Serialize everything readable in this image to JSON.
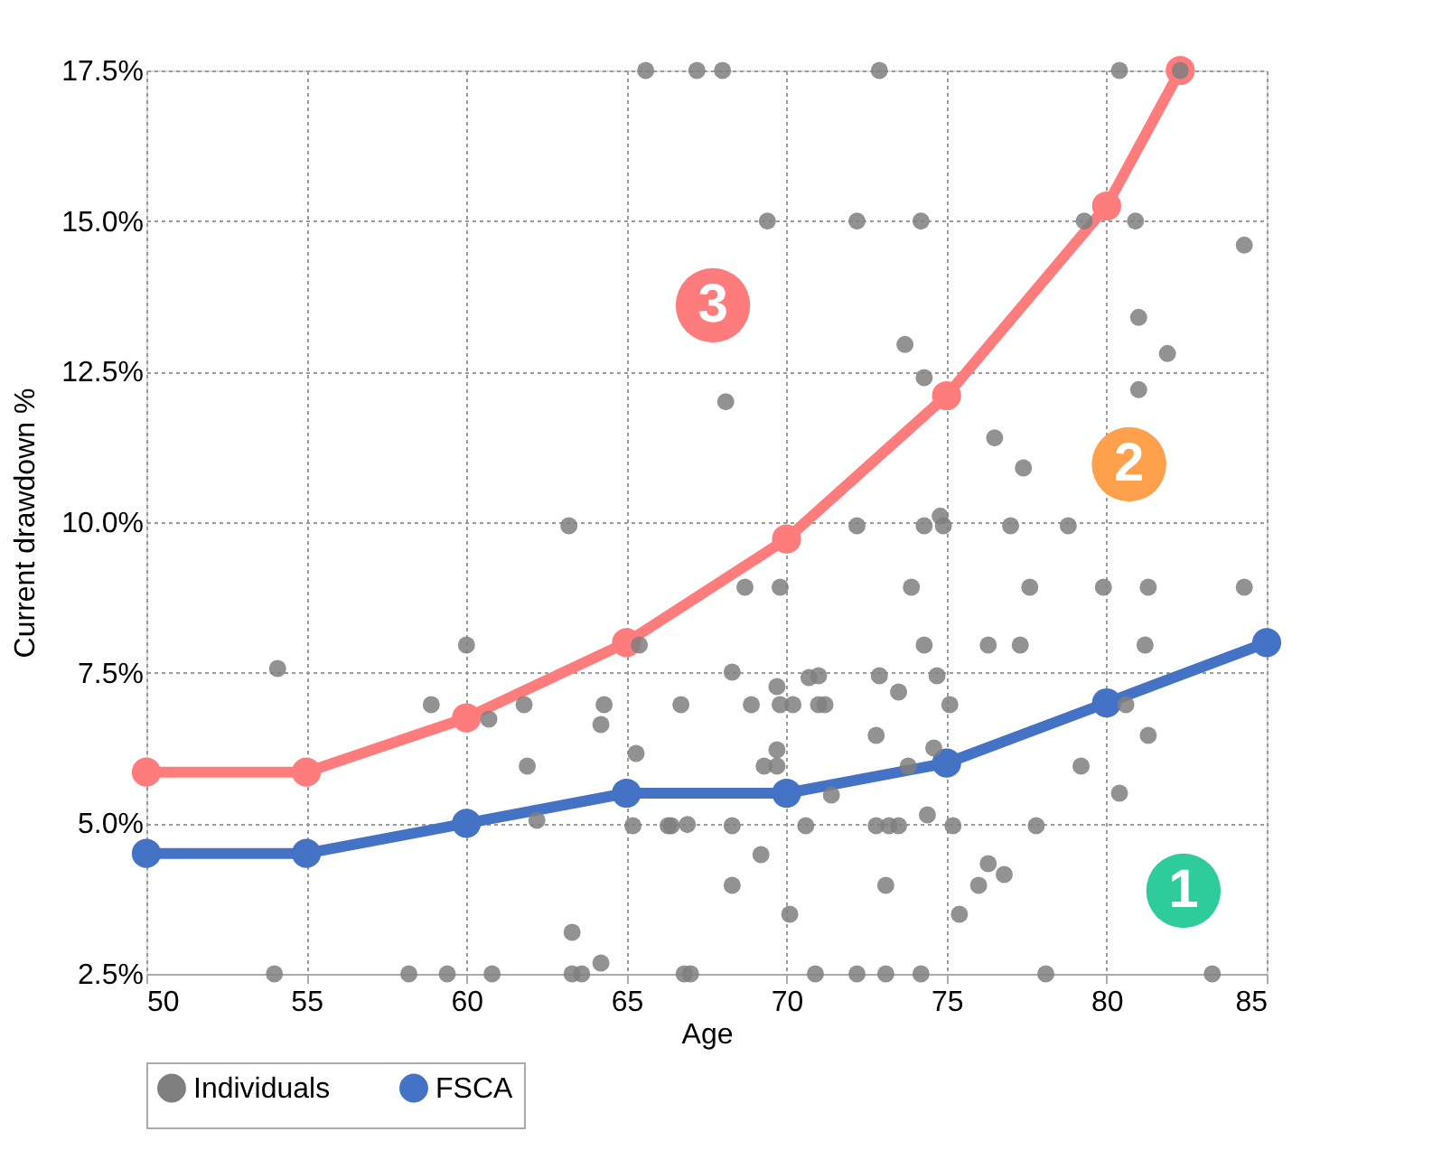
{
  "chart_data": {
    "type": "line",
    "xlabel": "Age",
    "ylabel": "Current drawdown %",
    "xlim": [
      50,
      85
    ],
    "xticks": [
      50,
      55,
      60,
      65,
      70,
      75,
      80,
      85
    ],
    "ylim": [
      2.5,
      17.5
    ],
    "yticks": [
      {
        "value": 2.5,
        "label": "2.5%"
      },
      {
        "value": 5.0,
        "label": "5.0%"
      },
      {
        "value": 7.5,
        "label": "7.5%"
      },
      {
        "value": 10.0,
        "label": "10.0%"
      },
      {
        "value": 12.5,
        "label": "12.5%"
      },
      {
        "value": 15.0,
        "label": "15.0%"
      },
      {
        "value": 17.5,
        "label": "17.5%"
      }
    ],
    "grid": true,
    "legend": "bottom",
    "marker": "circle",
    "series": [
      {
        "name": "Individuals",
        "type": "scatter",
        "color": "#7f7f7f",
        "x": [
          65.6,
          67.2,
          68.0,
          72.9,
          80.4,
          82.3,
          69.4,
          72.2,
          74.2,
          79.3,
          80.9,
          84.3,
          81.0,
          81.9,
          81.0,
          73.7,
          74.3,
          76.5,
          77.4,
          68.1,
          74.8,
          72.2,
          74.3,
          74.9,
          77.0,
          78.8,
          68.7,
          69.8,
          73.9,
          77.6,
          79.9,
          81.3,
          84.3,
          74.3,
          76.3,
          77.3,
          81.2,
          68.3,
          69.7,
          70.7,
          71.0,
          72.9,
          74.7,
          73.5,
          68.9,
          69.8,
          70.2,
          71.0,
          71.2,
          75.1,
          80.6,
          72.8,
          81.3,
          69.7,
          74.6,
          69.3,
          69.7,
          73.8,
          79.2,
          71.4,
          80.4,
          68.3,
          70.6,
          72.8,
          73.2,
          73.5,
          74.4,
          75.2,
          77.8,
          69.2,
          76.3,
          76.8,
          68.3,
          73.1,
          76.0,
          70.1,
          75.4,
          70.9,
          72.2,
          73.1,
          74.2,
          78.1,
          83.3,
          63.2,
          60.0,
          65.4,
          54.1,
          58.9,
          61.8,
          64.3,
          66.7,
          60.7,
          64.2,
          65.3,
          61.9,
          62.2,
          65.2,
          66.3,
          66.4,
          66.9,
          63.3,
          64.2,
          54.0,
          58.2,
          59.4,
          60.8,
          63.3,
          63.6,
          66.8,
          67.0
        ],
        "values": [
          17.5,
          17.5,
          17.5,
          17.5,
          17.5,
          17.5,
          15.0,
          15.0,
          15.0,
          15.0,
          15.0,
          14.6,
          13.4,
          12.8,
          12.2,
          12.95,
          12.4,
          11.4,
          10.9,
          12.0,
          10.1,
          9.94,
          9.94,
          9.94,
          9.94,
          9.94,
          8.92,
          8.92,
          8.92,
          8.92,
          8.92,
          8.92,
          8.92,
          7.96,
          7.96,
          7.96,
          7.96,
          7.51,
          7.27,
          7.42,
          7.45,
          7.45,
          7.45,
          7.18,
          6.97,
          6.97,
          6.97,
          6.97,
          6.97,
          6.97,
          6.97,
          6.46,
          6.46,
          6.22,
          6.25,
          5.95,
          5.95,
          5.95,
          5.95,
          5.47,
          5.5,
          4.96,
          4.96,
          4.96,
          4.96,
          4.96,
          5.14,
          4.96,
          4.96,
          4.48,
          4.33,
          4.15,
          3.97,
          3.97,
          3.97,
          3.49,
          3.49,
          2.5,
          2.5,
          2.5,
          2.5,
          2.5,
          2.5,
          9.94,
          7.96,
          7.96,
          7.57,
          6.97,
          6.97,
          6.97,
          6.97,
          6.73,
          6.64,
          6.16,
          5.95,
          5.05,
          4.96,
          4.96,
          4.96,
          4.98,
          3.19,
          2.68,
          2.5,
          2.5,
          2.5,
          2.5,
          2.5,
          2.5,
          2.5,
          2.5
        ]
      },
      {
        "name": "FSCA",
        "color": "#4472c4",
        "x": [
          50,
          55,
          60,
          65,
          70,
          75,
          80,
          85
        ],
        "values": [
          4.5,
          4.5,
          5.0,
          5.5,
          5.5,
          6.0,
          7.0,
          8.0
        ]
      },
      {
        "color": "#ff7c7c",
        "x": [
          50,
          55,
          60,
          65,
          70,
          75,
          80,
          82.3
        ],
        "values": [
          5.85,
          5.85,
          6.75,
          8.0,
          9.72,
          12.1,
          15.25,
          17.5
        ]
      }
    ],
    "annotations": [
      {
        "text": "3",
        "x": 67.7,
        "y": 13.6
      },
      {
        "text": "2",
        "x": 80.7,
        "y": 10.96
      },
      {
        "text": "1",
        "x": 82.4,
        "y": 3.88
      }
    ]
  }
}
